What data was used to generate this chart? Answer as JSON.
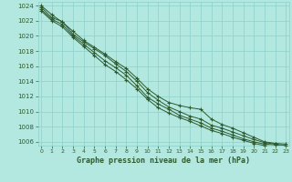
{
  "background_color": "#b3e8e0",
  "grid_color": "#8dcfca",
  "line_color": "#2d5a2d",
  "marker_color": "#2d5a2d",
  "xlabel": "Graphe pression niveau de la mer (hPa)",
  "ylim": [
    1005.5,
    1024.5
  ],
  "xlim": [
    -0.3,
    23.3
  ],
  "yticks": [
    1006,
    1008,
    1010,
    1012,
    1014,
    1016,
    1018,
    1020,
    1022,
    1024
  ],
  "xticks": [
    0,
    1,
    2,
    3,
    4,
    5,
    6,
    7,
    8,
    9,
    10,
    11,
    12,
    13,
    14,
    15,
    16,
    17,
    18,
    19,
    20,
    21,
    22,
    23
  ],
  "lines": [
    [
      1024.0,
      1022.8,
      1021.8,
      1020.6,
      1019.4,
      1018.5,
      1017.6,
      1016.6,
      1015.7,
      1014.4,
      1013.0,
      1012.0,
      1011.2,
      1010.8,
      1010.5,
      1010.3,
      1009.0,
      1008.3,
      1007.8,
      1007.2,
      1006.6,
      1006.0,
      1005.8,
      1005.7
    ],
    [
      1023.8,
      1022.4,
      1021.9,
      1020.2,
      1019.2,
      1018.3,
      1017.4,
      1016.3,
      1015.3,
      1014.0,
      1012.5,
      1011.5,
      1010.6,
      1010.0,
      1009.4,
      1009.0,
      1008.2,
      1007.8,
      1007.3,
      1006.8,
      1006.3,
      1005.9,
      1005.7,
      1005.5
    ],
    [
      1023.5,
      1022.2,
      1021.5,
      1020.0,
      1018.9,
      1017.8,
      1016.7,
      1015.8,
      1014.8,
      1013.4,
      1011.9,
      1011.0,
      1010.3,
      1009.5,
      1009.0,
      1008.5,
      1007.8,
      1007.4,
      1006.9,
      1006.4,
      1006.0,
      1005.7,
      1005.6,
      1005.4
    ],
    [
      1023.3,
      1022.0,
      1021.2,
      1019.8,
      1018.6,
      1017.4,
      1016.2,
      1015.3,
      1014.2,
      1013.0,
      1011.6,
      1010.5,
      1009.8,
      1009.2,
      1008.7,
      1008.1,
      1007.5,
      1007.1,
      1006.6,
      1006.2,
      1005.8,
      1005.5,
      1005.4,
      1005.3
    ]
  ]
}
